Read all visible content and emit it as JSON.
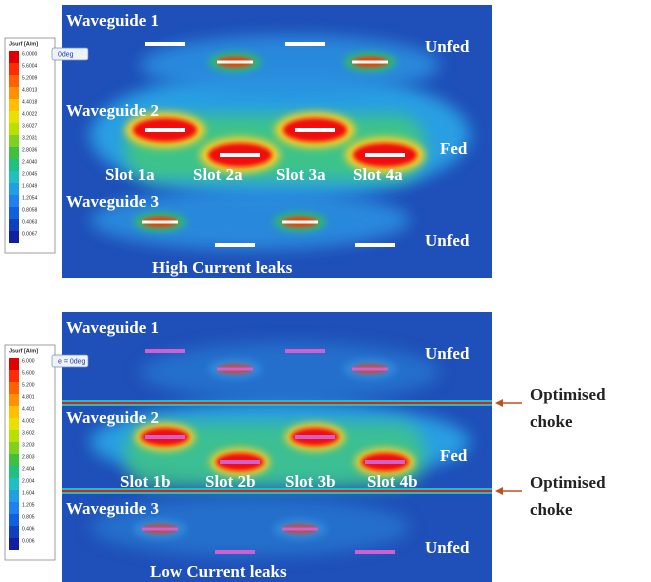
{
  "panels": [
    {
      "legend": {
        "title": "Jsurf [A/m]",
        "labels": [
          "6.0000",
          "5.6004",
          "5.2009",
          "4.8013",
          "4.4018",
          "4.0022",
          "3.6027",
          "3.2031",
          "2.8036",
          "2.4040",
          "2.0045",
          "1.6049",
          "1.2054",
          "0.8058",
          "0.4063",
          "0.0067"
        ]
      },
      "tab": "0deg",
      "waveguides": [
        "Waveguide 1",
        "Waveguide 2",
        "Waveguide 3"
      ],
      "states": [
        "Unfed",
        "Fed",
        "Unfed"
      ],
      "slots": [
        "Slot 1a",
        "Slot 2a",
        "Slot 3a",
        "Slot 4a"
      ],
      "caption": "High Current leaks"
    },
    {
      "legend": {
        "title": "Jsurf [A/m]",
        "labels": [
          "6.000",
          "5.600",
          "5.200",
          "4.801",
          "4.401",
          "4.002",
          "3.602",
          "3.203",
          "2.803",
          "2.404",
          "2.004",
          "1.604",
          "1.205",
          "0.805",
          "0.406",
          "0.006"
        ]
      },
      "tab": "e = 0deg",
      "waveguides": [
        "Waveguide 1",
        "Waveguide 2",
        "Waveguide 3"
      ],
      "states": [
        "Unfed",
        "Fed",
        "Unfed"
      ],
      "slots": [
        "Slot 1b",
        "Slot 2b",
        "Slot 3b",
        "Slot 4b"
      ],
      "caption": "Low Current leaks"
    }
  ],
  "annotations": [
    [
      "Optimised",
      "choke"
    ],
    [
      "Optimised",
      "choke"
    ]
  ]
}
